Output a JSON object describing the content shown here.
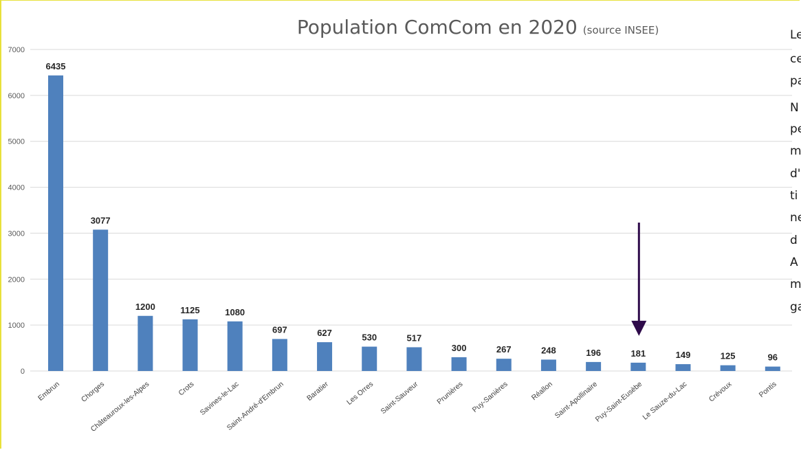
{
  "chart_data": {
    "type": "bar",
    "title": "Population ComCom en 2020",
    "subtitle": "(source INSEE)",
    "xlabel": "",
    "ylabel": "",
    "ylim": [
      0,
      7000
    ],
    "yticks": [
      0,
      1000,
      2000,
      3000,
      4000,
      5000,
      6000,
      7000
    ],
    "grid": true,
    "legend": "none",
    "bar_color": "#4f81bd",
    "categories": [
      "Embrun",
      "Chorges",
      "Châteauroux-les-Alpes",
      "Crots",
      "Savines-le-Lac",
      "Saint-André-d'Embrun",
      "Baratier",
      "Les Orres",
      "Saint-Sauveur",
      "Prunières",
      "Puy-Sanières",
      "Réallon",
      "Saint-Apollinaire",
      "Puy-Saint-Eusèbe",
      "Le Sauze-du-Lac",
      "Crévoux",
      "Pontis"
    ],
    "values": [
      6435,
      3077,
      1200,
      1125,
      1080,
      697,
      627,
      530,
      517,
      300,
      267,
      248,
      196,
      181,
      149,
      125,
      96
    ],
    "annotations": [
      {
        "type": "arrow",
        "target_category": "Puy-Saint-Eusèbe",
        "color": "#2e0a4a"
      }
    ]
  },
  "side_text": {
    "lines": [
      "Le",
      "ce",
      "pa",
      "N",
      "pe",
      "m",
      "d'",
      "ti",
      "ne",
      "d",
      "A",
      "m",
      "ga"
    ]
  }
}
